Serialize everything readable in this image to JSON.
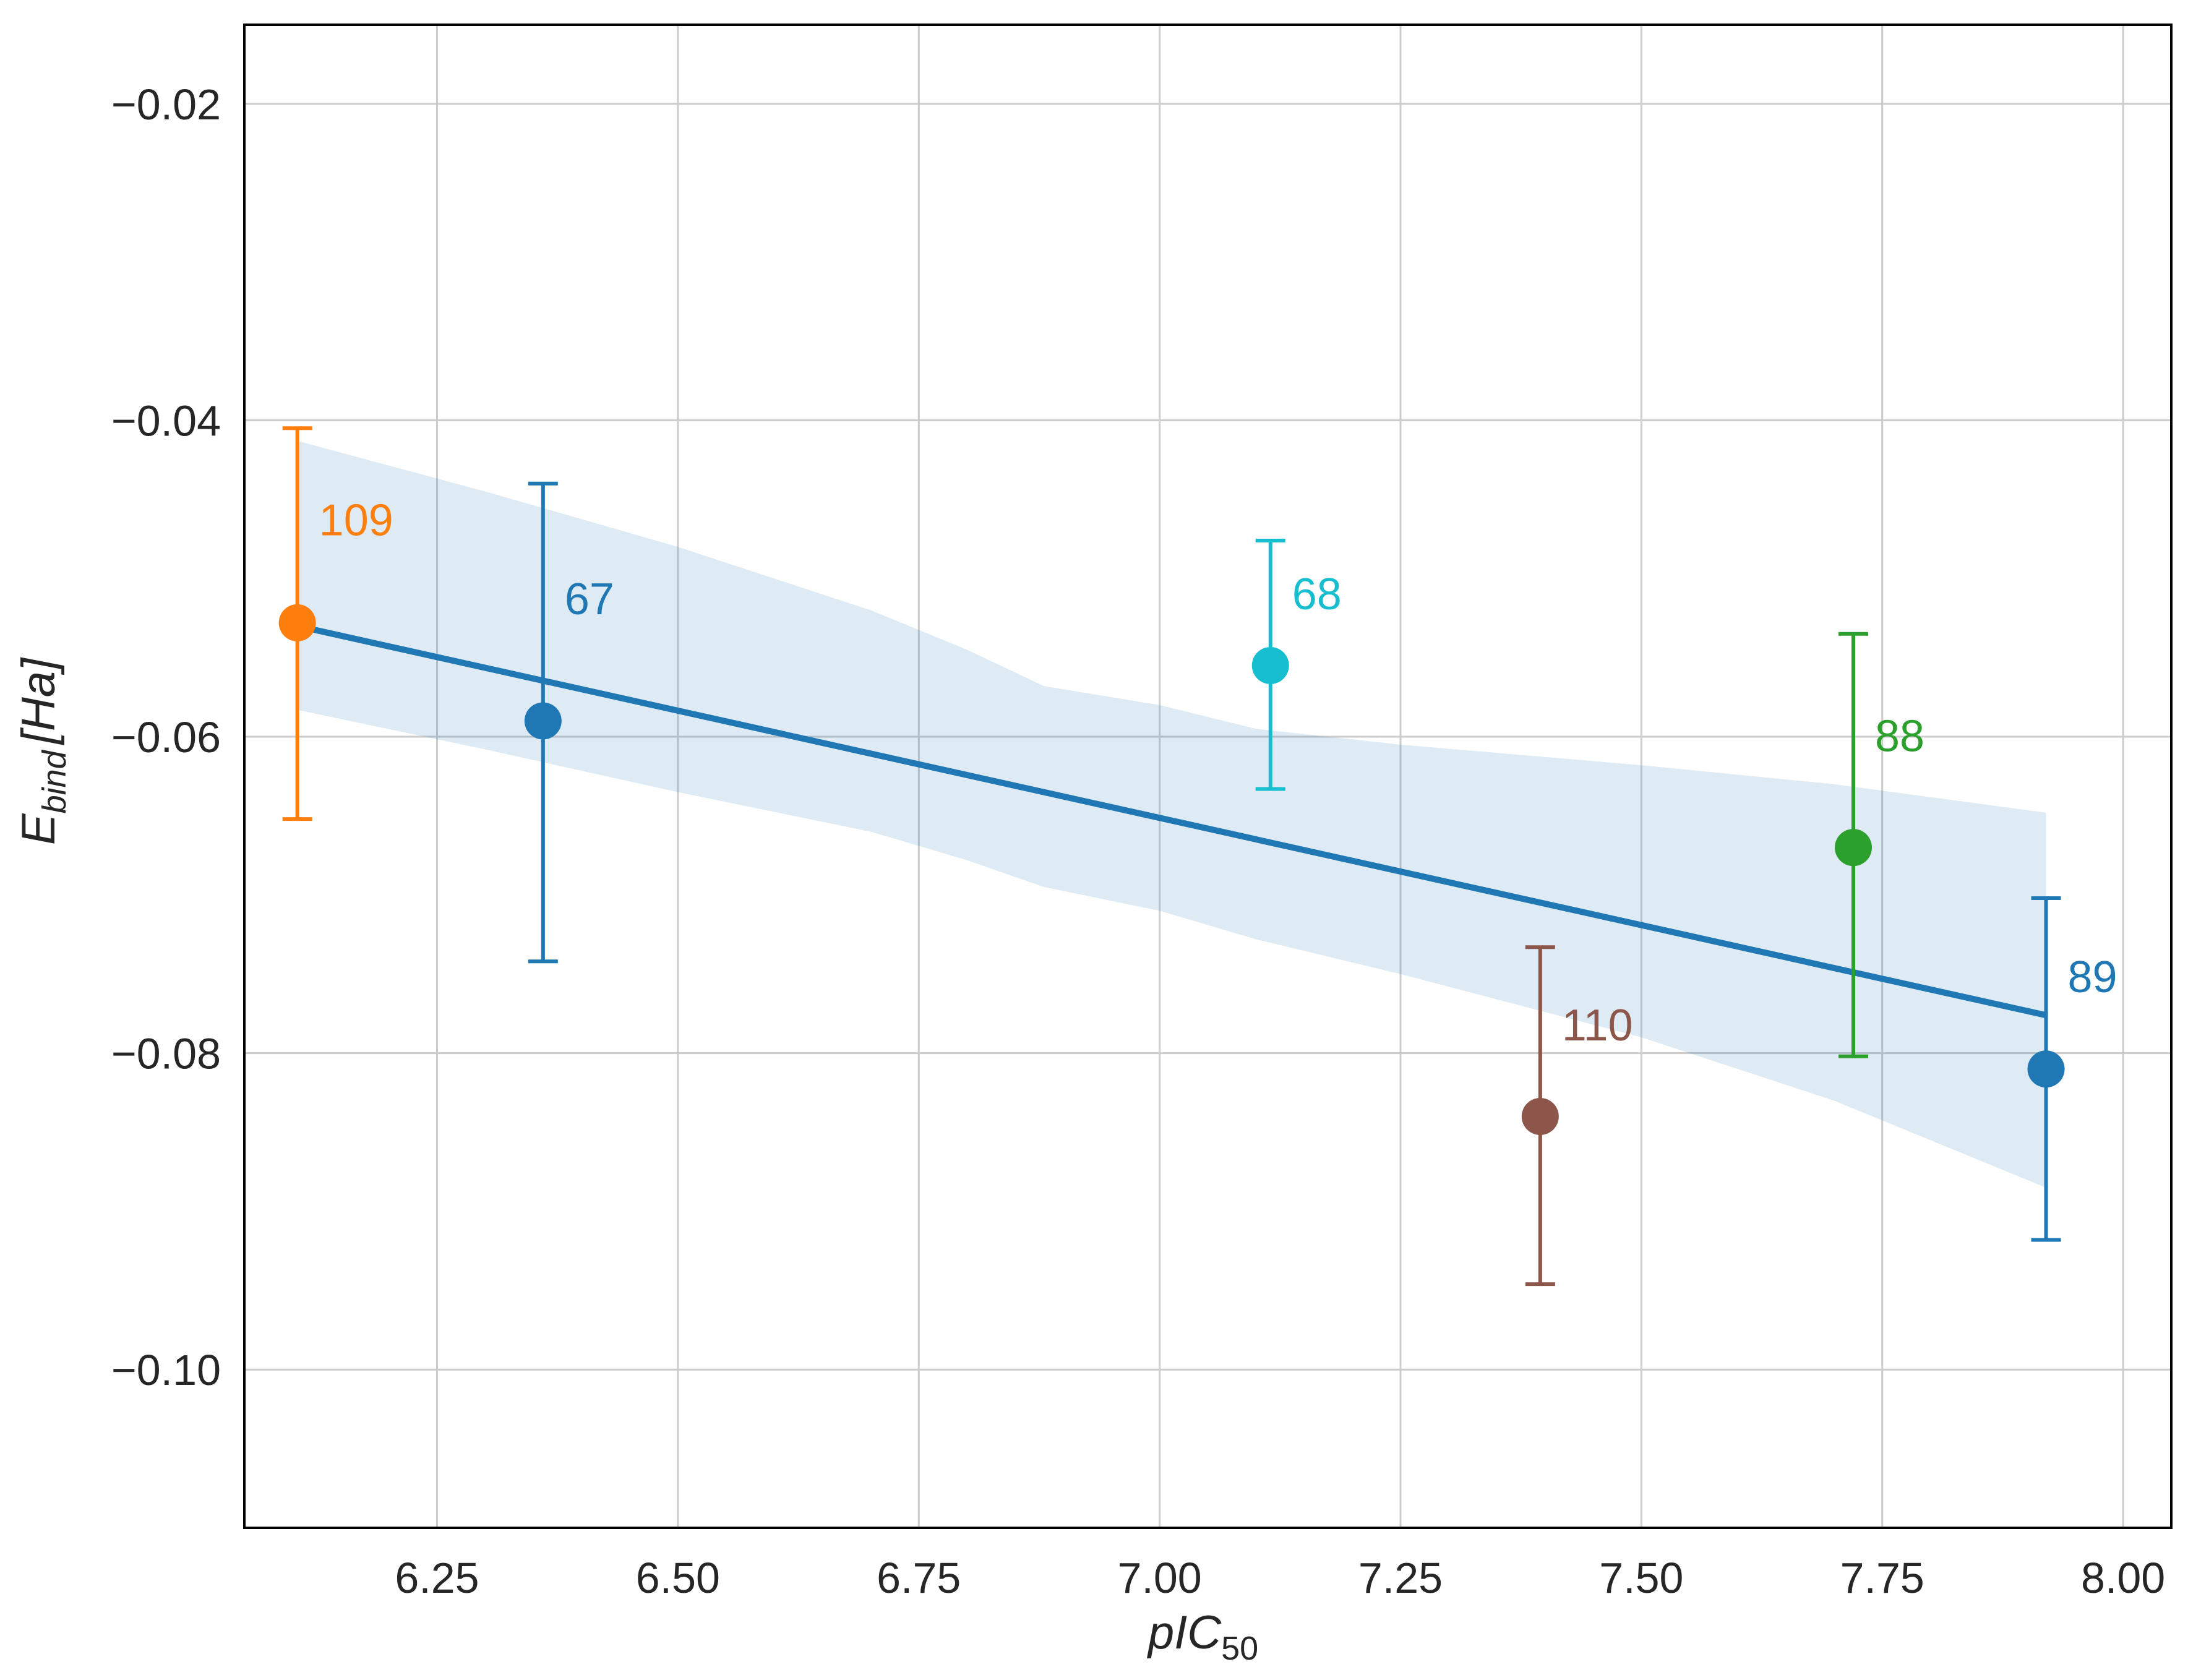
{
  "chart_data": {
    "type": "scatter",
    "title": "",
    "xlabel": {
      "main": "pIC",
      "sub": "50"
    },
    "ylabel": {
      "main": "E",
      "sub": "bind",
      "unit": "[Ha]"
    },
    "xlim": [
      6.05,
      8.05
    ],
    "ylim": [
      -0.11,
      -0.015
    ],
    "grid": true,
    "x_ticks": [
      6.25,
      6.5,
      6.75,
      7.0,
      7.25,
      7.5,
      7.75,
      8.0
    ],
    "x_tick_labels": [
      "6.25",
      "6.50",
      "6.75",
      "7.00",
      "7.25",
      "7.50",
      "7.75",
      "8.00"
    ],
    "y_ticks": [
      -0.02,
      -0.04,
      -0.06,
      -0.08,
      -0.1
    ],
    "y_tick_labels": [
      "−0.02",
      "−0.04",
      "−0.06",
      "−0.08",
      "−0.10"
    ],
    "points": [
      {
        "label": "109",
        "x": 6.105,
        "y": -0.0528,
        "err_low": -0.0652,
        "err_high": -0.0405,
        "color": "#ff7f0e"
      },
      {
        "label": "67",
        "x": 6.36,
        "y": -0.059,
        "err_low": -0.0742,
        "err_high": -0.044,
        "color": "#1f77b4"
      },
      {
        "label": "68",
        "x": 7.115,
        "y": -0.0555,
        "err_low": -0.0633,
        "err_high": -0.0476,
        "color": "#17becf"
      },
      {
        "label": "110",
        "x": 7.395,
        "y": -0.084,
        "err_low": -0.0946,
        "err_high": -0.0733,
        "color": "#8c564b"
      },
      {
        "label": "88",
        "x": 7.72,
        "y": -0.067,
        "err_low": -0.0802,
        "err_high": -0.0535,
        "color": "#2ca02c"
      },
      {
        "label": "89",
        "x": 7.92,
        "y": -0.081,
        "err_low": -0.0918,
        "err_high": -0.0702,
        "color": "#1f77b4"
      }
    ],
    "regression": {
      "x": [
        6.105,
        7.92
      ],
      "y": [
        -0.053,
        -0.0776
      ],
      "color": "#1f77b4"
    },
    "confidence_band": {
      "x": [
        6.105,
        6.3,
        6.5,
        6.7,
        6.8,
        6.88,
        7.0,
        7.1,
        7.25,
        7.5,
        7.7,
        7.92
      ],
      "upper": [
        -0.0413,
        -0.0445,
        -0.048,
        -0.052,
        -0.0545,
        -0.0568,
        -0.058,
        -0.0595,
        -0.0605,
        -0.0618,
        -0.063,
        -0.0648
      ],
      "lower": [
        -0.0583,
        -0.0608,
        -0.0635,
        -0.066,
        -0.0678,
        -0.0695,
        -0.071,
        -0.0728,
        -0.075,
        -0.079,
        -0.083,
        -0.0885
      ],
      "color": "#1f77b4",
      "opacity": 0.15
    }
  }
}
